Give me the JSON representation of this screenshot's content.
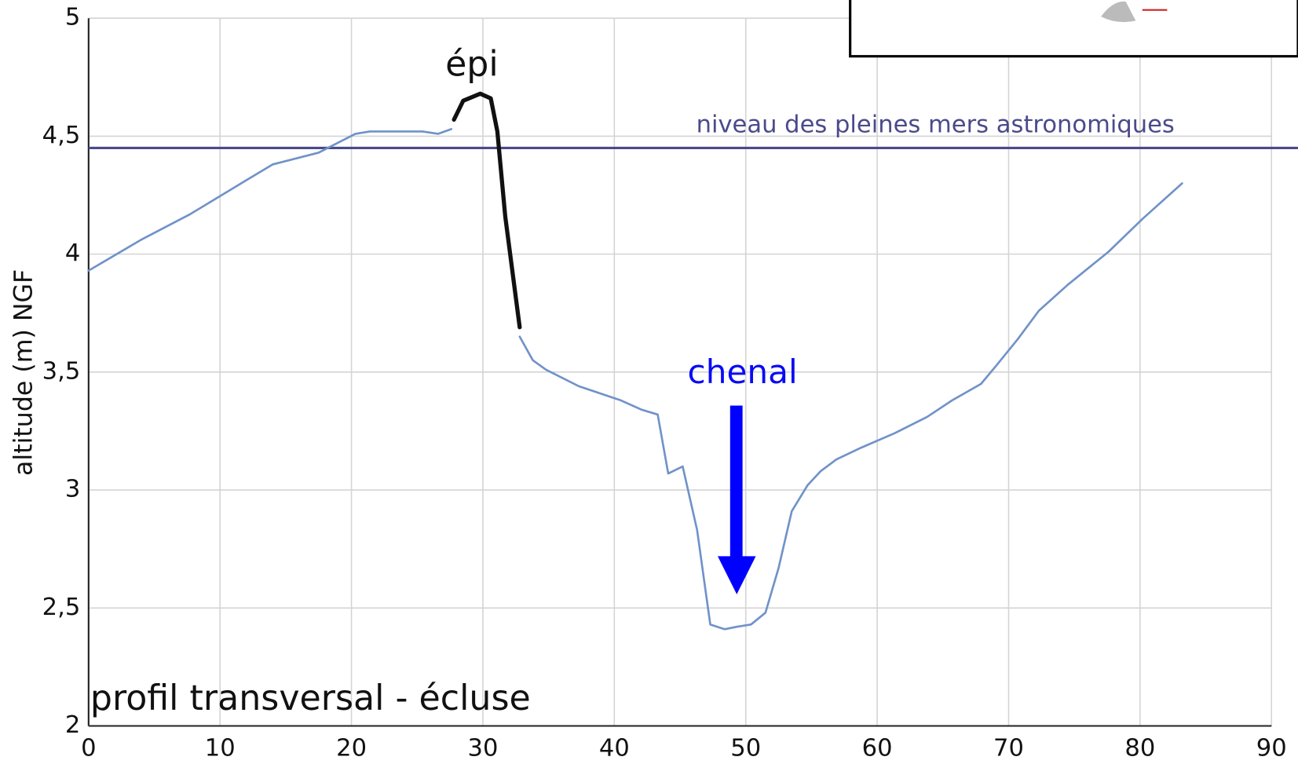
{
  "chart_data": {
    "type": "line",
    "y_label": "altitude (m) NGF",
    "annotations": [
      "profil transversal - écluse",
      "épi",
      "chenal",
      "niveau des pleines mers astronomiques"
    ],
    "reference_line": {
      "value": 4.45,
      "color": "#4a4a8c"
    },
    "xlim": [
      0,
      90
    ],
    "xticks": [
      0,
      10,
      20,
      30,
      40,
      50,
      60,
      70,
      80,
      90
    ],
    "ylim": [
      2,
      5
    ],
    "yticks": [
      2,
      {
        "value": 2.5,
        "label": "2,5"
      },
      3,
      {
        "value": 3.5,
        "label": "3,5"
      },
      4,
      {
        "value": 4.5,
        "label": "4,5"
      },
      5
    ],
    "grid": true,
    "series": [
      {
        "color": "#7092c8",
        "x": [
          0,
          3.97,
          7.75,
          12.2,
          14.0,
          17.5,
          20.3,
          21.4,
          22.9,
          24.1,
          25.4,
          26.6,
          27.6,
          null,
          32.8,
          33.8,
          34.8,
          37.3,
          40.5,
          42.1,
          43.3,
          44.1,
          45.2,
          46.3,
          47.3,
          48.4,
          49.3,
          50.4,
          51.5,
          52.5,
          53.5,
          54.7,
          55.7,
          56.9,
          58.8,
          61.3,
          63.8,
          65.7,
          67.9,
          69.1,
          70.7,
          72.3,
          74.5,
          77.6,
          80.2,
          83.2
        ],
        "values": [
          3.93,
          4.06,
          4.17,
          4.32,
          4.38,
          4.43,
          4.51,
          4.52,
          4.52,
          4.52,
          4.52,
          4.51,
          4.53,
          null,
          3.65,
          3.55,
          3.51,
          3.44,
          3.38,
          3.34,
          3.32,
          3.07,
          3.1,
          2.83,
          2.43,
          2.41,
          2.42,
          2.43,
          2.48,
          2.67,
          2.91,
          3.02,
          3.08,
          3.13,
          3.18,
          3.24,
          3.31,
          3.38,
          3.45,
          3.53,
          3.64,
          3.76,
          3.87,
          4.01,
          4.15,
          4.3
        ]
      },
      {
        "color": "#111111",
        "x": [
          27.8,
          28.5,
          29.8,
          30.6,
          31.1,
          31.7,
          32.8
        ],
        "values": [
          4.57,
          4.65,
          4.68,
          4.66,
          4.52,
          4.16,
          3.69
        ]
      }
    ]
  }
}
